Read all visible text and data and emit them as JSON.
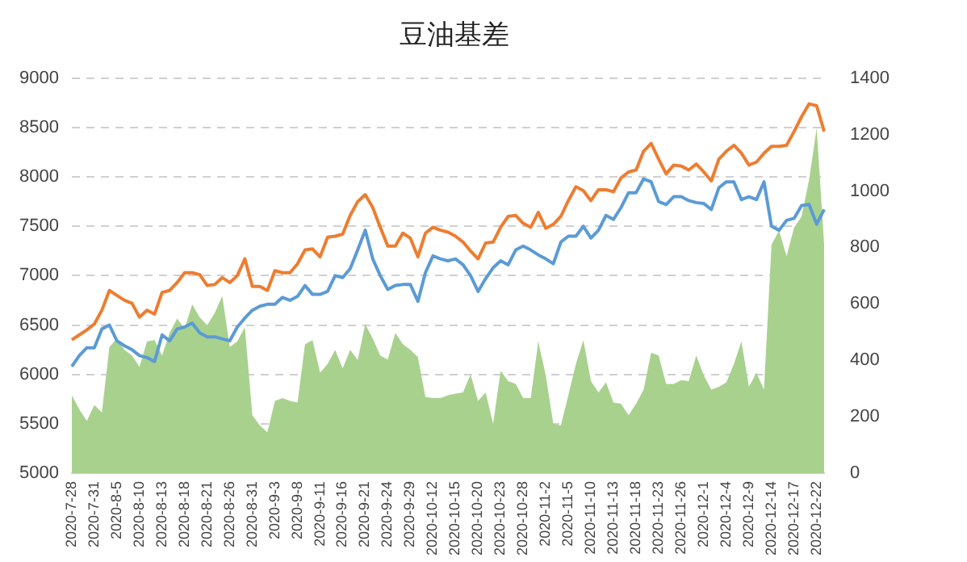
{
  "chart_data": {
    "type": "line",
    "title": "豆油基差",
    "categories": [
      "2020-7-28",
      null,
      null,
      "2020-7-31",
      null,
      null,
      "2020-8-5",
      null,
      null,
      "2020-8-10",
      null,
      null,
      "2020-8-13",
      null,
      null,
      "2020-8-18",
      null,
      null,
      "2020-8-21",
      null,
      null,
      "2020-8-26",
      null,
      null,
      "2020-8-31",
      null,
      null,
      "2020-9-3",
      null,
      null,
      "2020-9-8",
      null,
      null,
      "2020-9-11",
      null,
      null,
      "2020-9-16",
      null,
      null,
      "2020-9-21",
      null,
      null,
      "2020-9-24",
      null,
      null,
      "2020-9-29",
      null,
      null,
      "2020-10-12",
      null,
      null,
      "2020-10-15",
      null,
      null,
      "2020-10-20",
      null,
      null,
      "2020-10-23",
      null,
      null,
      "2020-10-28",
      null,
      null,
      "2020-11-2",
      null,
      null,
      "2020-11-5",
      null,
      null,
      "2020-11-10",
      null,
      null,
      "2020-11-13",
      null,
      null,
      "2020-11-18",
      null,
      null,
      "2020-11-23",
      null,
      null,
      "2020-11-26",
      null,
      null,
      "2020-12-1",
      null,
      null,
      "2020-12-4",
      null,
      null,
      "2020-12-9",
      null,
      null,
      "2020-12-14",
      null,
      null,
      "2020-12-17",
      null,
      null,
      "2020-12-22",
      null
    ],
    "series": [
      {
        "type": "area",
        "axis": "y2",
        "color": "#a9d18e",
        "values": [
          276,
          226,
          185,
          242,
          215,
          447,
          477,
          437,
          417,
          377,
          467,
          471,
          417,
          497,
          548,
          512,
          598,
          552,
          524,
          568,
          628,
          447,
          467,
          518,
          205,
          169,
          145,
          256,
          266,
          256,
          250,
          457,
          471,
          356,
          387,
          437,
          371,
          437,
          401,
          528,
          477,
          417,
          403,
          497,
          457,
          437,
          411,
          270,
          266,
          266,
          276,
          282,
          286,
          350,
          256,
          286,
          175,
          363,
          326,
          316,
          266,
          266,
          467,
          346,
          175,
          169,
          276,
          387,
          471,
          326,
          286,
          322,
          250,
          246,
          205,
          246,
          296,
          427,
          417,
          316,
          316,
          330,
          326,
          417,
          346,
          296,
          306,
          322,
          387,
          467,
          306,
          356,
          296,
          810,
          860,
          769,
          870,
          910,
          1041,
          1223,
          810
        ]
      },
      {
        "color": "#ed7d31",
        "values": [
          6350,
          6400,
          6450,
          6510,
          6650,
          6850,
          6800,
          6750,
          6720,
          6580,
          6650,
          6610,
          6830,
          6850,
          6930,
          7030,
          7030,
          7010,
          6900,
          6910,
          6980,
          6930,
          7000,
          7170,
          6890,
          6890,
          6850,
          7050,
          7030,
          7030,
          7120,
          7260,
          7270,
          7190,
          7390,
          7400,
          7420,
          7610,
          7750,
          7820,
          7690,
          7490,
          7300,
          7300,
          7430,
          7380,
          7190,
          7430,
          7490,
          7460,
          7440,
          7400,
          7340,
          7250,
          7170,
          7330,
          7340,
          7490,
          7600,
          7610,
          7530,
          7490,
          7640,
          7480,
          7520,
          7600,
          7760,
          7900,
          7860,
          7760,
          7870,
          7870,
          7850,
          7990,
          8050,
          8070,
          8260,
          8340,
          8180,
          8030,
          8120,
          8110,
          8070,
          8130,
          8050,
          7960,
          8180,
          8260,
          8320,
          8240,
          8120,
          8150,
          8240,
          8310,
          8310,
          8320,
          8460,
          8610,
          8740,
          8720,
          8460
        ]
      },
      {
        "color": "#5b9bd5",
        "values": [
          6080,
          6190,
          6270,
          6270,
          6460,
          6500,
          6340,
          6290,
          6250,
          6190,
          6170,
          6130,
          6400,
          6340,
          6460,
          6480,
          6520,
          6420,
          6380,
          6380,
          6360,
          6340,
          6480,
          6570,
          6650,
          6690,
          6710,
          6710,
          6780,
          6750,
          6790,
          6900,
          6810,
          6810,
          6840,
          7000,
          6980,
          7070,
          7260,
          7460,
          7170,
          7000,
          6860,
          6900,
          6910,
          6910,
          6740,
          7030,
          7200,
          7170,
          7150,
          7170,
          7110,
          7000,
          6840,
          6970,
          7080,
          7150,
          7110,
          7260,
          7300,
          7260,
          7210,
          7170,
          7120,
          7340,
          7400,
          7400,
          7500,
          7380,
          7460,
          7610,
          7570,
          7690,
          7840,
          7840,
          7980,
          7950,
          7750,
          7720,
          7800,
          7800,
          7760,
          7740,
          7730,
          7670,
          7890,
          7950,
          7950,
          7770,
          7800,
          7770,
          7950,
          7500,
          7460,
          7560,
          7580,
          7710,
          7720,
          7520,
          7670
        ]
      }
    ],
    "ylim": [
      5000,
      9000
    ],
    "yticks": [
      5000,
      5500,
      6000,
      6500,
      7000,
      7500,
      8000,
      8500,
      9000
    ],
    "y2lim": [
      0,
      1400
    ],
    "y2ticks": [
      0,
      200,
      400,
      600,
      800,
      1000,
      1200,
      1400
    ],
    "grid": "y",
    "legend": false,
    "marker": "none",
    "line_style": "solid"
  }
}
